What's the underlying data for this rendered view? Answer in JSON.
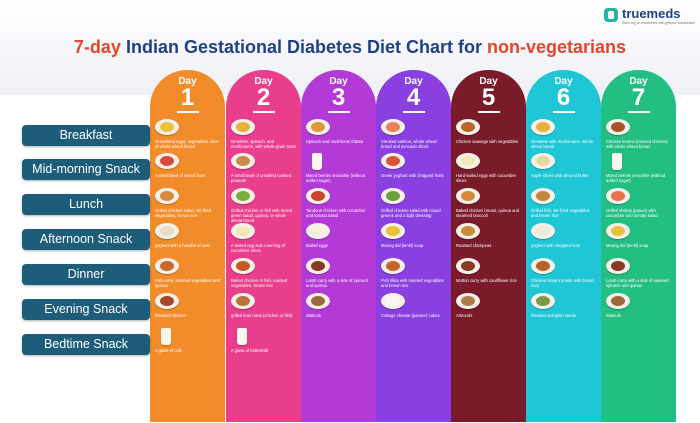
{
  "brand": {
    "name": "truemeds",
    "tagline": "Save big on medicines with generic substitutes"
  },
  "title": {
    "part1": "7-day ",
    "part2": "Indian Gestational Diabetes Diet Chart for ",
    "part3": "non-vegetarians"
  },
  "meals": [
    "Breakfast",
    "Mid-morning Snack",
    "Lunch",
    "Afternoon Snack",
    "Dinner",
    "Evening Snack",
    "Bedtime Snack"
  ],
  "days": [
    {
      "label": "Day",
      "number": "1",
      "color": "#f28c2a",
      "items": [
        {
          "text": "Scrambled eggs, vegetables, slice of whole wheat bread",
          "food": "#e9c23a"
        },
        {
          "text": "A small bowl of mixed fruits",
          "food": "#d84a3a"
        },
        {
          "text": "Grilled chicken salad, stir-fried vegetables, brown rice",
          "food": "#d6893a"
        },
        {
          "text": "yoghurt with a handful of nuts",
          "food": "#e9dcc2"
        },
        {
          "text": "Fish curry, sauteed vegetables and quinoa",
          "food": "#c9662a"
        },
        {
          "text": "Roasted chicken",
          "food": "#a8442a"
        },
        {
          "text": "A glass of milk",
          "food": "glass"
        }
      ]
    },
    {
      "label": "Day",
      "number": "2",
      "color": "#e83e8c",
      "items": [
        {
          "text": "Omelette, spinach, and mushrooms, with whole-grain toast",
          "food": "#e4b23a"
        },
        {
          "text": "A small bowl of unsalted roasted peanuts",
          "food": "#c98a4a"
        },
        {
          "text": "Grilled chicken or fish with mixed green salad, quinoa, or whole wheat bread",
          "food": "#7cae3e"
        },
        {
          "text": "A boiled egg and a serving of cucumber slices",
          "food": "#f4e7b6"
        },
        {
          "text": "Baked chicken or fish, roasted vegetables, brown rice",
          "food": "#c45a2a"
        },
        {
          "text": "grilled lean meat (chicken or fish)",
          "food": "#b8743a"
        },
        {
          "text": "A glass of buttermilk",
          "food": "glass"
        }
      ]
    },
    {
      "label": "Day",
      "number": "3",
      "color": "#b33ad6",
      "items": [
        {
          "text": "Spinach and mushroom frittata",
          "food": "#d99a3a"
        },
        {
          "text": "Mixed berries smoothie (without added sugar)",
          "food": "glass"
        },
        {
          "text": "Tandoori chicken with cucumber and tomato salad",
          "food": "#c8442a"
        },
        {
          "text": "Boiled eggs",
          "food": "#f6efdc"
        },
        {
          "text": "Lamb curry with a side of spinach and quinoa",
          "food": "#8a3a22"
        },
        {
          "text": "Walnuts",
          "food": "#9a6a3a"
        }
      ]
    },
    {
      "label": "Day",
      "number": "4",
      "color": "#8a3fe0",
      "items": [
        {
          "text": "Smoked salmon, whole wheat bread and avocado slices",
          "food": "#e8805a"
        },
        {
          "text": "Greek yoghurt with chopped fruits",
          "food": "#d8543a"
        },
        {
          "text": "Grilled chicken salad with mixed greens and a light dressing",
          "food": "#6aa03a"
        },
        {
          "text": "Moong dal (lentil) soup",
          "food": "#e8c23a"
        },
        {
          "text": "Fish tikka with roasted vegetables and brown rice",
          "food": "#c8642a"
        },
        {
          "text": "Cottage cheese (paneer) cubes",
          "food": "#f8f8f0"
        }
      ]
    },
    {
      "label": "Day",
      "number": "5",
      "color": "#7a1b2a",
      "items": [
        {
          "text": "Chicken sausage with vegetables",
          "food": "#b8642a"
        },
        {
          "text": "Hard-boiled eggs with cucumber slices",
          "food": "#f4e7b6"
        },
        {
          "text": "Baked chicken breast, quinoa and steamed broccoli",
          "food": "#d6893a"
        },
        {
          "text": "Roasted chickpeas",
          "food": "#c98a3a"
        },
        {
          "text": "Mutton curry with cauliflower rice",
          "food": "#8a3a22"
        },
        {
          "text": "Almonds",
          "food": "#b07a4a"
        }
      ]
    },
    {
      "label": "Day",
      "number": "6",
      "color": "#1fc6d6",
      "items": [
        {
          "text": "Omelette with mushrooms, whole wheat bread",
          "food": "#e4b23a"
        },
        {
          "text": "Apple slices with almond butter",
          "food": "#e8d8a0"
        },
        {
          "text": "Grilled fish, stir-fried vegetables and brown rice",
          "food": "#c8843a"
        },
        {
          "text": "yoghurt with chopped nuts",
          "food": "#f2ead8"
        },
        {
          "text": "Chicken biryani (made with brown rice)",
          "food": "#b8602a"
        },
        {
          "text": "Roasted pumpkin seeds",
          "food": "#7a9a4a"
        }
      ]
    },
    {
      "label": "Day",
      "number": "7",
      "color": "#23bf82",
      "items": [
        {
          "text": "Chicken keema (minced chicken) with whole wheat bread",
          "food": "#a8542a"
        },
        {
          "text": "Mixed berries smoothie (without added sugar)",
          "food": "glass"
        },
        {
          "text": "Grilled shrimp (prawn) with cucumber and tomato salad",
          "food": "#e8704a"
        },
        {
          "text": "Moong dal (lentil) soup",
          "food": "#e8c23a"
        },
        {
          "text": "Lamb curry with a side of sauteed spinach and quinoa",
          "food": "#8a3a22"
        },
        {
          "text": "Walnuts",
          "food": "#9a6a3a"
        }
      ]
    }
  ]
}
